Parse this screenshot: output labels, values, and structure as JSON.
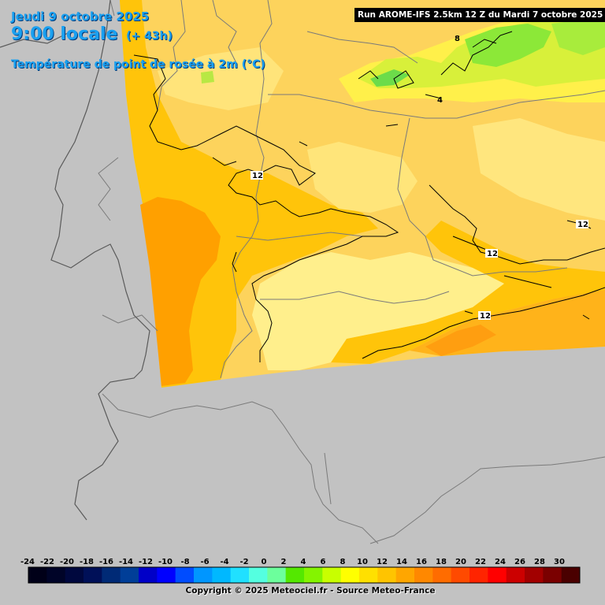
{
  "header": {
    "date": "Jeudi 9 octobre 2025",
    "time": "9:00 locale",
    "lead": "(+ 43h)",
    "variable": "Température de point de rosée à 2m (°C)"
  },
  "run_info": "Run AROME-IFS 2.5km 12 Z du Mardi 7 octobre 2025",
  "contour_labels": [
    "12",
    "12",
    "12",
    "12",
    "8",
    "4"
  ],
  "legend": {
    "ticks": [
      "-24",
      "-22",
      "-20",
      "-18",
      "-16",
      "-14",
      "-12",
      "-10",
      "-8",
      "-6",
      "-4",
      "-2",
      "0",
      "2",
      "4",
      "6",
      "8",
      "10",
      "12",
      "14",
      "16",
      "18",
      "20",
      "22",
      "24",
      "26",
      "28",
      "30"
    ],
    "colors": [
      "#000018",
      "#000428",
      "#00083e",
      "#001058",
      "#002a76",
      "#003e98",
      "#0000c8",
      "#0000ff",
      "#004cff",
      "#0096ff",
      "#00b8ff",
      "#20e0ff",
      "#54ffe0",
      "#6cff9c",
      "#54e800",
      "#84f400",
      "#c8ff00",
      "#ffff00",
      "#ffe000",
      "#ffc400",
      "#ffa600",
      "#ff8800",
      "#ff6c00",
      "#ff4a00",
      "#ff2400",
      "#ff0000",
      "#cc0000",
      "#a20000",
      "#7a0000",
      "#4a0000"
    ]
  },
  "copyright": "Copyright © 2025 Meteociel.fr - Source Meteo-France",
  "colors": {
    "background": "#c2c2c2",
    "title": "#1aa0f0"
  }
}
